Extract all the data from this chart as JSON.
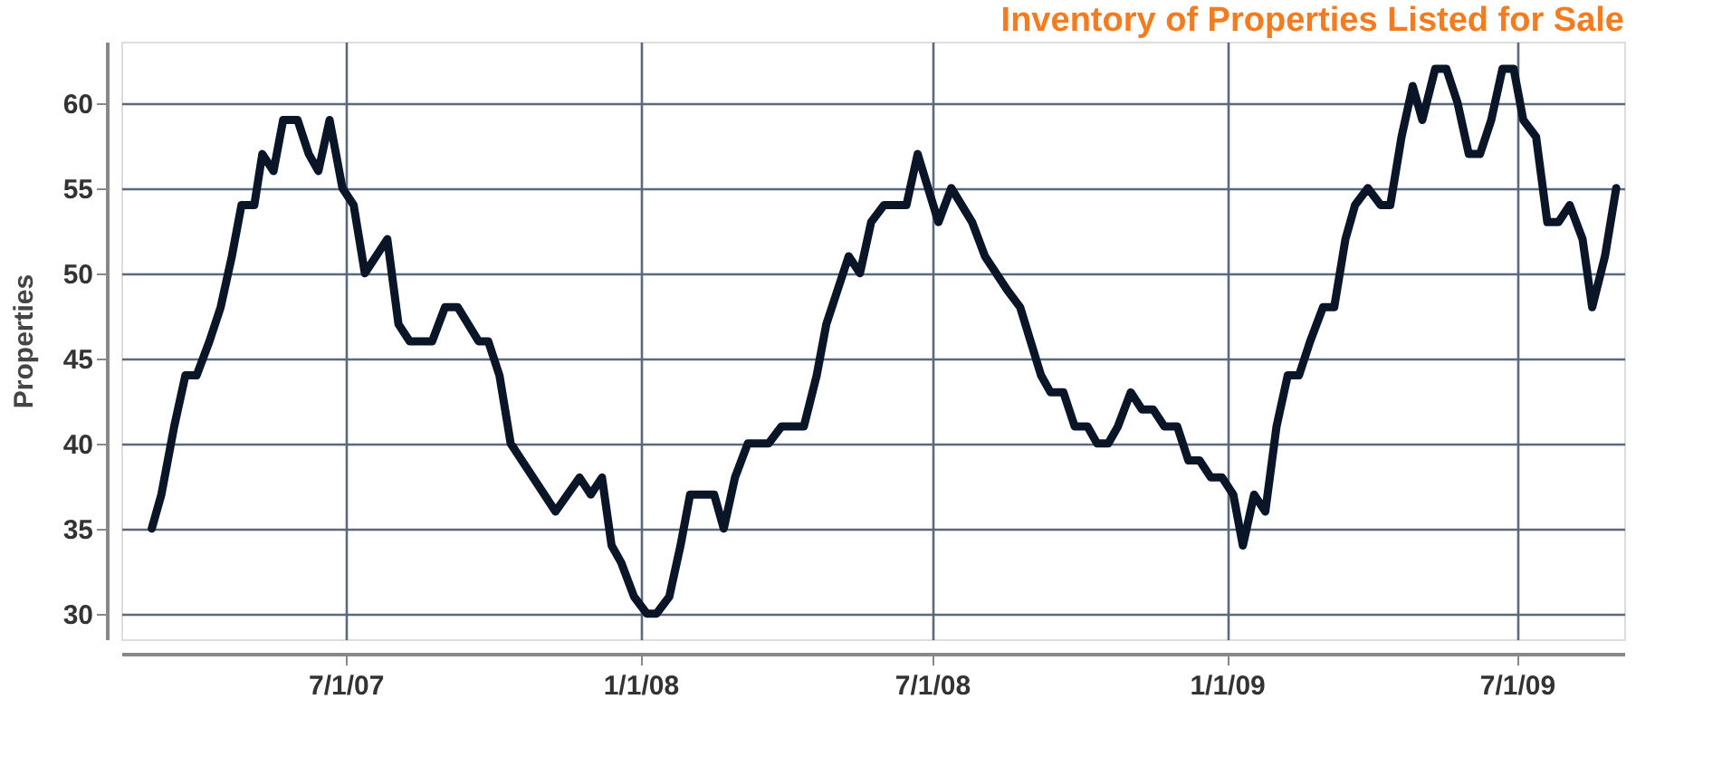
{
  "chart_data": {
    "type": "line",
    "title": "Inventory of Properties Listed for Sale",
    "ylabel": "Properties",
    "x": [
      "2007-03-02",
      "2007-03-08",
      "2007-03-16",
      "2007-03-23",
      "2007-03-30",
      "2007-04-07",
      "2007-04-14",
      "2007-04-21",
      "2007-04-27",
      "2007-05-05",
      "2007-05-10",
      "2007-05-17",
      "2007-05-23",
      "2007-06-01",
      "2007-06-08",
      "2007-06-14",
      "2007-06-21",
      "2007-06-29",
      "2007-07-06",
      "2007-07-13",
      "2007-07-27",
      "2007-08-03",
      "2007-08-10",
      "2007-08-24",
      "2007-09-01",
      "2007-09-09",
      "2007-09-22",
      "2007-09-28",
      "2007-10-05",
      "2007-10-12",
      "2007-11-09",
      "2007-11-24",
      "2007-12-01",
      "2007-12-08",
      "2007-12-14",
      "2007-12-20",
      "2007-12-28",
      "2008-01-05",
      "2008-01-11",
      "2008-01-19",
      "2008-01-26",
      "2008-02-01",
      "2008-02-16",
      "2008-02-22",
      "2008-02-29",
      "2008-03-08",
      "2008-03-21",
      "2008-03-29",
      "2008-04-12",
      "2008-04-20",
      "2008-04-26",
      "2008-05-10",
      "2008-05-17",
      "2008-05-24",
      "2008-06-01",
      "2008-06-15",
      "2008-06-22",
      "2008-07-05",
      "2008-07-13",
      "2008-07-26",
      "2008-08-03",
      "2008-08-17",
      "2008-08-25",
      "2008-09-07",
      "2008-09-13",
      "2008-09-21",
      "2008-09-28",
      "2008-10-06",
      "2008-10-12",
      "2008-10-19",
      "2008-10-25",
      "2008-11-02",
      "2008-11-09",
      "2008-11-16",
      "2008-11-23",
      "2008-12-01",
      "2008-12-08",
      "2008-12-15",
      "2008-12-22",
      "2008-12-29",
      "2009-01-05",
      "2009-01-11",
      "2009-01-18",
      "2009-01-25",
      "2009-02-01",
      "2009-02-08",
      "2009-02-15",
      "2009-02-22",
      "2009-03-02",
      "2009-03-09",
      "2009-03-16",
      "2009-03-22",
      "2009-03-30",
      "2009-04-07",
      "2009-04-13",
      "2009-04-20",
      "2009-04-27",
      "2009-05-03",
      "2009-05-11",
      "2009-05-18",
      "2009-05-25",
      "2009-06-01",
      "2009-06-08",
      "2009-06-15",
      "2009-06-22",
      "2009-06-29",
      "2009-07-05",
      "2009-07-13",
      "2009-07-20",
      "2009-07-27",
      "2009-08-03",
      "2009-08-11",
      "2009-08-17",
      "2009-08-25",
      "2009-09-01"
    ],
    "series": [
      {
        "color": "#0a1628",
        "values": [
          35,
          37,
          41,
          44,
          44,
          46,
          48,
          51,
          54,
          54,
          57,
          56,
          59,
          59,
          57,
          56,
          59,
          55,
          54,
          50,
          52,
          47,
          46,
          46,
          48,
          48,
          46,
          46,
          44,
          40,
          36,
          38,
          37,
          38,
          34,
          33,
          31,
          30,
          30,
          31,
          34,
          37,
          37,
          35,
          38,
          40,
          40,
          41,
          41,
          44,
          47,
          51,
          50,
          53,
          54,
          54,
          57,
          53,
          55,
          53,
          51,
          49,
          48,
          44,
          43,
          43,
          41,
          41,
          40,
          40,
          41,
          43,
          42,
          42,
          41,
          41,
          39,
          39,
          38,
          38,
          37,
          34,
          37,
          36,
          41,
          44,
          44,
          46,
          48,
          48,
          52,
          54,
          55,
          54,
          54,
          58,
          61,
          59,
          62,
          62,
          60,
          57,
          57,
          59,
          62,
          62,
          59,
          58,
          53,
          53,
          54,
          52,
          48,
          51,
          55
        ]
      }
    ],
    "xlim": [
      "2007-02-11",
      "2009-09-06"
    ],
    "xticks": [
      {
        "value": "2007-07-01",
        "label": "7/1/07"
      },
      {
        "value": "2008-01-01",
        "label": "1/1/08"
      },
      {
        "value": "2008-07-01",
        "label": "7/1/08"
      },
      {
        "value": "2009-01-01",
        "label": "1/1/09"
      },
      {
        "value": "2009-07-01",
        "label": "7/1/09"
      }
    ],
    "ylim": [
      28.5,
      63.6
    ],
    "yticks": [
      30,
      35,
      40,
      45,
      50,
      55,
      60
    ],
    "grid": true,
    "line_style": "solid",
    "marker": "none"
  }
}
